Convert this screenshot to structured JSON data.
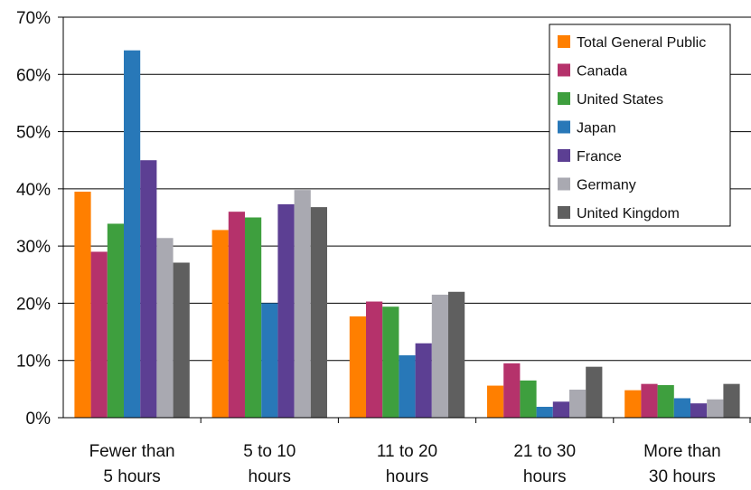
{
  "chart_data": {
    "type": "bar",
    "title": "",
    "xlabel": "",
    "ylabel": "",
    "ylim": [
      0,
      70
    ],
    "y_ticks": [
      "0%",
      "10%",
      "20%",
      "30%",
      "40%",
      "50%",
      "60%",
      "70%"
    ],
    "y_tick_values": [
      0,
      10,
      20,
      30,
      40,
      50,
      60,
      70
    ],
    "grid": "horizontal",
    "legend_position": "top-right",
    "categories": [
      [
        "Fewer than",
        "5 hours"
      ],
      [
        "5 to 10",
        "hours"
      ],
      [
        "11 to 20",
        "hours"
      ],
      [
        "21 to 30",
        "hours"
      ],
      [
        "More than",
        "30 hours"
      ]
    ],
    "series": [
      {
        "name": "Total General Public",
        "color": "#FF7F00",
        "values": [
          39.5,
          32.8,
          17.7,
          5.6,
          4.8
        ]
      },
      {
        "name": "Canada",
        "color": "#B5326B",
        "values": [
          29.0,
          36.0,
          20.3,
          9.5,
          5.9
        ]
      },
      {
        "name": "United States",
        "color": "#3E9F3E",
        "values": [
          33.9,
          35.0,
          19.4,
          6.5,
          5.7
        ]
      },
      {
        "name": "Japan",
        "color": "#2878B8",
        "values": [
          64.2,
          20.0,
          10.9,
          1.9,
          3.4
        ]
      },
      {
        "name": "France",
        "color": "#5C3F93",
        "values": [
          45.0,
          37.3,
          13.0,
          2.8,
          2.5
        ]
      },
      {
        "name": "Germany",
        "color": "#A9A9B1",
        "values": [
          31.4,
          39.8,
          21.5,
          4.9,
          3.2
        ]
      },
      {
        "name": "United Kingdom",
        "color": "#5F5F5F",
        "values": [
          27.1,
          36.8,
          22.0,
          8.9,
          5.9
        ]
      }
    ]
  }
}
